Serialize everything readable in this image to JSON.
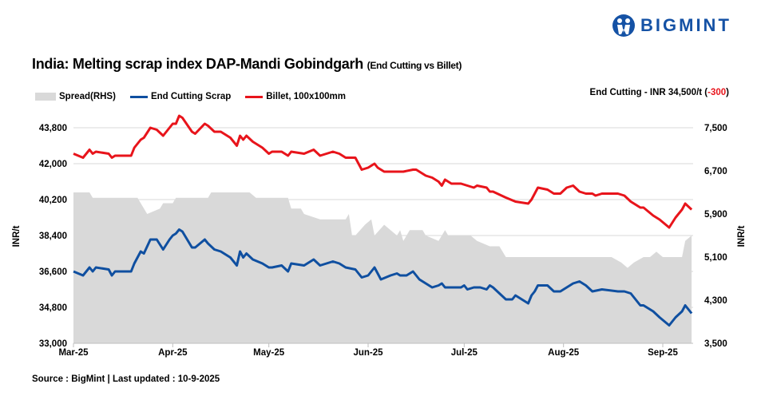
{
  "logo": {
    "text": "BIGMINT",
    "color": "#1552a5"
  },
  "title": {
    "main": "India: Melting scrap index DAP-Mandi Gobindgarh",
    "sub": "(End Cutting vs Billet)"
  },
  "headline": {
    "prefix": "End Cutting - INR 34,500/t (",
    "change": "-300",
    "suffix": ")",
    "change_color": "#e8141b"
  },
  "source": "Source : BigMint | Last updated : 10-9-2025",
  "chart_data": {
    "type": "line",
    "title": "India: Melting scrap index DAP-Mandi Gobindgarh (End Cutting vs Billet)",
    "ylabel": "INR/t",
    "y2label": "INR/t",
    "ylim": [
      33000,
      43800
    ],
    "y2lim": [
      3500,
      7500
    ],
    "yticks": [
      "33,000",
      "34,800",
      "36,600",
      "38,400",
      "40,200",
      "42,000",
      "43,800"
    ],
    "y2ticks": [
      "3,500",
      "4,300",
      "5,100",
      "5,900",
      "6,700",
      "7,500"
    ],
    "xlim": [
      "2025-03-01",
      "2025-09-10"
    ],
    "xticks": [
      {
        "label": "Mar-25",
        "date": "2025-03-01"
      },
      {
        "label": "Apr-25",
        "date": "2025-04-01"
      },
      {
        "label": "May-25",
        "date": "2025-05-01"
      },
      {
        "label": "Jun-25",
        "date": "2025-06-01"
      },
      {
        "label": "Jul-25",
        "date": "2025-07-01"
      },
      {
        "label": "Aug-25",
        "date": "2025-08-01"
      },
      {
        "label": "Sep-25",
        "date": "2025-09-01"
      }
    ],
    "grid": true,
    "legend_position": "top-left",
    "series": [
      {
        "name": "Spread(RHS)",
        "type": "area",
        "axis": "right",
        "color": "#d9d9d9",
        "points": [
          [
            "2025-03-01",
            6300
          ],
          [
            "2025-03-06",
            6300
          ],
          [
            "2025-03-07",
            6200
          ],
          [
            "2025-03-21",
            6200
          ],
          [
            "2025-03-24",
            5900
          ],
          [
            "2025-03-28",
            6000
          ],
          [
            "2025-03-29",
            6100
          ],
          [
            "2025-04-01",
            6100
          ],
          [
            "2025-04-02",
            6200
          ],
          [
            "2025-04-12",
            6200
          ],
          [
            "2025-04-13",
            6300
          ],
          [
            "2025-04-25",
            6300
          ],
          [
            "2025-04-27",
            6200
          ],
          [
            "2025-05-07",
            6200
          ],
          [
            "2025-05-08",
            6000
          ],
          [
            "2025-05-11",
            6000
          ],
          [
            "2025-05-12",
            5900
          ],
          [
            "2025-05-17",
            5800
          ],
          [
            "2025-05-25",
            5800
          ],
          [
            "2025-05-26",
            5900
          ],
          [
            "2025-05-27",
            5500
          ],
          [
            "2025-05-28",
            5500
          ],
          [
            "2025-05-31",
            5700
          ],
          [
            "2025-06-02",
            5800
          ],
          [
            "2025-06-03",
            5500
          ],
          [
            "2025-06-06",
            5700
          ],
          [
            "2025-06-08",
            5600
          ],
          [
            "2025-06-10",
            5500
          ],
          [
            "2025-06-11",
            5600
          ],
          [
            "2025-06-12",
            5400
          ],
          [
            "2025-06-14",
            5600
          ],
          [
            "2025-06-18",
            5600
          ],
          [
            "2025-06-19",
            5500
          ],
          [
            "2025-06-23",
            5400
          ],
          [
            "2025-06-24",
            5500
          ],
          [
            "2025-06-25",
            5600
          ],
          [
            "2025-06-26",
            5500
          ],
          [
            "2025-07-03",
            5500
          ],
          [
            "2025-07-05",
            5400
          ],
          [
            "2025-07-09",
            5300
          ],
          [
            "2025-07-12",
            5300
          ],
          [
            "2025-07-14",
            5100
          ],
          [
            "2025-08-16",
            5100
          ],
          [
            "2025-08-19",
            5000
          ],
          [
            "2025-08-21",
            4900
          ],
          [
            "2025-08-23",
            5000
          ],
          [
            "2025-08-26",
            5100
          ],
          [
            "2025-08-28",
            5100
          ],
          [
            "2025-08-30",
            5200
          ],
          [
            "2025-09-01",
            5100
          ],
          [
            "2025-09-07",
            5100
          ],
          [
            "2025-09-08",
            5400
          ],
          [
            "2025-09-10",
            5500
          ]
        ]
      },
      {
        "name": "End Cutting Scrap",
        "type": "line",
        "axis": "left",
        "color": "#0f4fa0",
        "points": [
          [
            "2025-03-01",
            36600
          ],
          [
            "2025-03-04",
            36400
          ],
          [
            "2025-03-06",
            36800
          ],
          [
            "2025-03-07",
            36600
          ],
          [
            "2025-03-08",
            36800
          ],
          [
            "2025-03-12",
            36700
          ],
          [
            "2025-03-13",
            36400
          ],
          [
            "2025-03-14",
            36600
          ],
          [
            "2025-03-19",
            36600
          ],
          [
            "2025-03-20",
            37000
          ],
          [
            "2025-03-22",
            37600
          ],
          [
            "2025-03-23",
            37500
          ],
          [
            "2025-03-25",
            38200
          ],
          [
            "2025-03-27",
            38200
          ],
          [
            "2025-03-29",
            37700
          ],
          [
            "2025-03-31",
            38200
          ],
          [
            "2025-04-01",
            38400
          ],
          [
            "2025-04-02",
            38500
          ],
          [
            "2025-04-03",
            38700
          ],
          [
            "2025-04-04",
            38600
          ],
          [
            "2025-04-07",
            37800
          ],
          [
            "2025-04-08",
            37800
          ],
          [
            "2025-04-11",
            38200
          ],
          [
            "2025-04-12",
            38000
          ],
          [
            "2025-04-14",
            37700
          ],
          [
            "2025-04-16",
            37600
          ],
          [
            "2025-04-19",
            37300
          ],
          [
            "2025-04-21",
            36900
          ],
          [
            "2025-04-22",
            37600
          ],
          [
            "2025-04-23",
            37300
          ],
          [
            "2025-04-24",
            37500
          ],
          [
            "2025-04-26",
            37200
          ],
          [
            "2025-04-29",
            37000
          ],
          [
            "2025-05-01",
            36800
          ],
          [
            "2025-05-02",
            36800
          ],
          [
            "2025-05-05",
            36900
          ],
          [
            "2025-05-07",
            36600
          ],
          [
            "2025-05-08",
            37000
          ],
          [
            "2025-05-12",
            36900
          ],
          [
            "2025-05-15",
            37200
          ],
          [
            "2025-05-17",
            36900
          ],
          [
            "2025-05-21",
            37100
          ],
          [
            "2025-05-23",
            37000
          ],
          [
            "2025-05-25",
            36800
          ],
          [
            "2025-05-28",
            36700
          ],
          [
            "2025-05-29",
            36500
          ],
          [
            "2025-05-30",
            36300
          ],
          [
            "2025-06-01",
            36400
          ],
          [
            "2025-06-03",
            36800
          ],
          [
            "2025-06-05",
            36200
          ],
          [
            "2025-06-08",
            36400
          ],
          [
            "2025-06-10",
            36500
          ],
          [
            "2025-06-11",
            36400
          ],
          [
            "2025-06-13",
            36400
          ],
          [
            "2025-06-15",
            36600
          ],
          [
            "2025-06-17",
            36200
          ],
          [
            "2025-06-20",
            35900
          ],
          [
            "2025-06-21",
            35800
          ],
          [
            "2025-06-23",
            35900
          ],
          [
            "2025-06-24",
            36000
          ],
          [
            "2025-06-25",
            35800
          ],
          [
            "2025-06-30",
            35800
          ],
          [
            "2025-07-01",
            35900
          ],
          [
            "2025-07-02",
            35700
          ],
          [
            "2025-07-04",
            35800
          ],
          [
            "2025-07-06",
            35800
          ],
          [
            "2025-07-08",
            35700
          ],
          [
            "2025-07-09",
            35900
          ],
          [
            "2025-07-10",
            35800
          ],
          [
            "2025-07-14",
            35200
          ],
          [
            "2025-07-16",
            35200
          ],
          [
            "2025-07-17",
            35400
          ],
          [
            "2025-07-21",
            35000
          ],
          [
            "2025-07-22",
            35400
          ],
          [
            "2025-07-23",
            35600
          ],
          [
            "2025-07-24",
            35900
          ],
          [
            "2025-07-27",
            35900
          ],
          [
            "2025-07-29",
            35600
          ],
          [
            "2025-07-31",
            35600
          ],
          [
            "2025-08-02",
            35800
          ],
          [
            "2025-08-04",
            36000
          ],
          [
            "2025-08-06",
            36100
          ],
          [
            "2025-08-08",
            35900
          ],
          [
            "2025-08-10",
            35600
          ],
          [
            "2025-08-13",
            35700
          ],
          [
            "2025-08-18",
            35600
          ],
          [
            "2025-08-20",
            35600
          ],
          [
            "2025-08-22",
            35500
          ],
          [
            "2025-08-25",
            34900
          ],
          [
            "2025-08-26",
            34900
          ],
          [
            "2025-08-29",
            34600
          ],
          [
            "2025-08-31",
            34300
          ],
          [
            "2025-09-03",
            33900
          ],
          [
            "2025-09-05",
            34300
          ],
          [
            "2025-09-07",
            34600
          ],
          [
            "2025-09-08",
            34900
          ],
          [
            "2025-09-10",
            34500
          ]
        ]
      },
      {
        "name": "Billet, 100x100mm",
        "type": "line",
        "axis": "left",
        "color": "#e8141b",
        "points": [
          [
            "2025-03-01",
            42500
          ],
          [
            "2025-03-04",
            42300
          ],
          [
            "2025-03-06",
            42700
          ],
          [
            "2025-03-07",
            42500
          ],
          [
            "2025-03-08",
            42600
          ],
          [
            "2025-03-12",
            42500
          ],
          [
            "2025-03-13",
            42300
          ],
          [
            "2025-03-14",
            42400
          ],
          [
            "2025-03-19",
            42400
          ],
          [
            "2025-03-20",
            42800
          ],
          [
            "2025-03-22",
            43200
          ],
          [
            "2025-03-23",
            43300
          ],
          [
            "2025-03-25",
            43800
          ],
          [
            "2025-03-27",
            43700
          ],
          [
            "2025-03-29",
            43400
          ],
          [
            "2025-03-31",
            43800
          ],
          [
            "2025-04-01",
            44000
          ],
          [
            "2025-04-02",
            44000
          ],
          [
            "2025-04-03",
            44400
          ],
          [
            "2025-04-04",
            44300
          ],
          [
            "2025-04-07",
            43600
          ],
          [
            "2025-04-08",
            43500
          ],
          [
            "2025-04-11",
            44000
          ],
          [
            "2025-04-12",
            43900
          ],
          [
            "2025-04-14",
            43600
          ],
          [
            "2025-04-16",
            43600
          ],
          [
            "2025-04-19",
            43300
          ],
          [
            "2025-04-21",
            42900
          ],
          [
            "2025-04-22",
            43400
          ],
          [
            "2025-04-23",
            43200
          ],
          [
            "2025-04-24",
            43400
          ],
          [
            "2025-04-26",
            43100
          ],
          [
            "2025-04-29",
            42800
          ],
          [
            "2025-05-01",
            42500
          ],
          [
            "2025-05-02",
            42600
          ],
          [
            "2025-05-05",
            42600
          ],
          [
            "2025-05-07",
            42400
          ],
          [
            "2025-05-08",
            42600
          ],
          [
            "2025-05-12",
            42500
          ],
          [
            "2025-05-15",
            42700
          ],
          [
            "2025-05-17",
            42400
          ],
          [
            "2025-05-21",
            42600
          ],
          [
            "2025-05-23",
            42500
          ],
          [
            "2025-05-25",
            42300
          ],
          [
            "2025-05-28",
            42300
          ],
          [
            "2025-05-29",
            42000
          ],
          [
            "2025-05-30",
            41700
          ],
          [
            "2025-06-01",
            41800
          ],
          [
            "2025-06-03",
            42000
          ],
          [
            "2025-06-04",
            41800
          ],
          [
            "2025-06-06",
            41600
          ],
          [
            "2025-06-12",
            41600
          ],
          [
            "2025-06-15",
            41700
          ],
          [
            "2025-06-16",
            41700
          ],
          [
            "2025-06-19",
            41400
          ],
          [
            "2025-06-21",
            41300
          ],
          [
            "2025-06-23",
            41100
          ],
          [
            "2025-06-24",
            40900
          ],
          [
            "2025-06-25",
            41200
          ],
          [
            "2025-06-27",
            41000
          ],
          [
            "2025-06-30",
            41000
          ],
          [
            "2025-07-02",
            40900
          ],
          [
            "2025-07-04",
            40800
          ],
          [
            "2025-07-05",
            40900
          ],
          [
            "2025-07-08",
            40800
          ],
          [
            "2025-07-09",
            40600
          ],
          [
            "2025-07-10",
            40600
          ],
          [
            "2025-07-14",
            40300
          ],
          [
            "2025-07-17",
            40100
          ],
          [
            "2025-07-21",
            40000
          ],
          [
            "2025-07-22",
            40200
          ],
          [
            "2025-07-24",
            40800
          ],
          [
            "2025-07-27",
            40700
          ],
          [
            "2025-07-29",
            40500
          ],
          [
            "2025-07-31",
            40500
          ],
          [
            "2025-08-02",
            40800
          ],
          [
            "2025-08-04",
            40900
          ],
          [
            "2025-08-06",
            40600
          ],
          [
            "2025-08-08",
            40500
          ],
          [
            "2025-08-10",
            40500
          ],
          [
            "2025-08-11",
            40400
          ],
          [
            "2025-08-13",
            40500
          ],
          [
            "2025-08-18",
            40500
          ],
          [
            "2025-08-20",
            40400
          ],
          [
            "2025-08-22",
            40100
          ],
          [
            "2025-08-25",
            39800
          ],
          [
            "2025-08-26",
            39800
          ],
          [
            "2025-08-29",
            39400
          ],
          [
            "2025-08-31",
            39200
          ],
          [
            "2025-09-03",
            38800
          ],
          [
            "2025-09-05",
            39300
          ],
          [
            "2025-09-07",
            39700
          ],
          [
            "2025-09-08",
            40000
          ],
          [
            "2025-09-10",
            39700
          ]
        ]
      }
    ]
  }
}
